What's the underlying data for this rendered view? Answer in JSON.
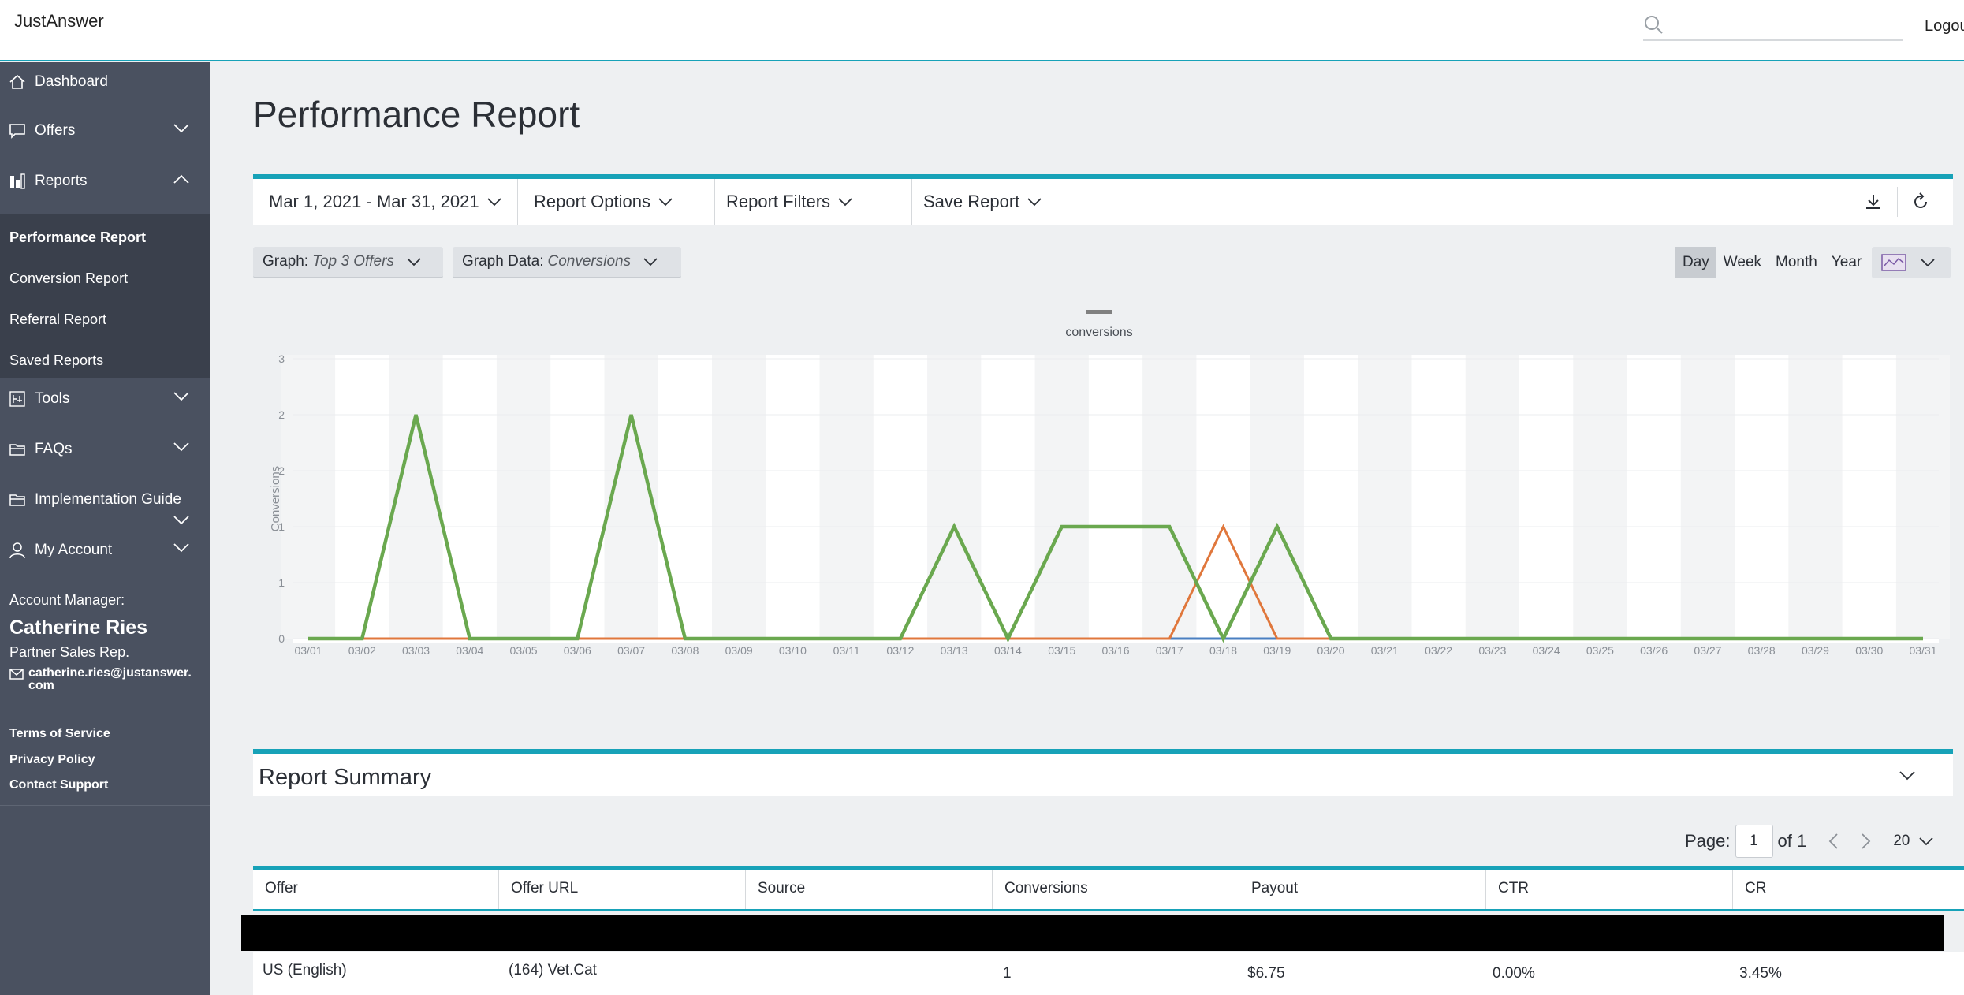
{
  "header": {
    "logo": "JustAnswer",
    "search_placeholder": "",
    "logout": "Logout"
  },
  "sidebar": {
    "items": [
      {
        "label": "Dashboard",
        "icon": "home-icon"
      },
      {
        "label": "Offers",
        "icon": "chat-icon"
      },
      {
        "label": "Reports",
        "icon": "bar-chart-icon"
      },
      {
        "label": "Tools",
        "icon": "tools-icon"
      },
      {
        "label": "FAQs",
        "icon": "folder-icon"
      },
      {
        "label": "Implementation Guide",
        "icon": "folder-icon"
      },
      {
        "label": "My Account",
        "icon": "user-icon"
      }
    ],
    "sub_items": [
      "Performance Report",
      "Conversion Report",
      "Referral Report",
      "Saved Reports"
    ],
    "account": {
      "label": "Account Manager:",
      "name": "Catherine Ries",
      "role": "Partner Sales Rep.",
      "email_line1": "catherine.ries@justanswer.",
      "email_line2": "com"
    },
    "footer_links": [
      "Terms of Service",
      "Privacy Policy",
      "Contact Support"
    ]
  },
  "main": {
    "title": "Performance Report",
    "filters": {
      "date_range": "Mar 1, 2021 - Mar 31, 2021",
      "report_options": "Report Options",
      "report_filters": "Report Filters",
      "save_report": "Save Report"
    },
    "graph": {
      "label": "Graph:",
      "value": "Top 3 Offers"
    },
    "graph_data": {
      "label": "Graph Data:",
      "value": "Conversions"
    },
    "periods": [
      "Day",
      "Week",
      "Month",
      "Year"
    ],
    "active_period": "Day",
    "summary_title": "Report Summary",
    "pager": {
      "label": "Page:",
      "page": "1",
      "of": "of 1",
      "per_page": "20"
    },
    "table": {
      "columns": [
        "Offer",
        "Offer URL",
        "Source",
        "Conversions",
        "Payout",
        "CTR",
        "CR"
      ],
      "rows": [
        {
          "offer": "US (English)",
          "url": "(164) Vet.Cat",
          "source": "",
          "conversions": "1",
          "payout": "$6.75",
          "ctr": "0.00%",
          "cr": "3.45%"
        }
      ]
    }
  },
  "chart_data": {
    "type": "line",
    "legend": [
      "conversions"
    ],
    "ylabel": "Conversions",
    "ytick_labels": [
      "0",
      "1",
      "1",
      "2",
      "2",
      "3"
    ],
    "ylim": [
      0,
      2.5
    ],
    "categories": [
      "03/01",
      "03/02",
      "03/03",
      "03/04",
      "03/05",
      "03/06",
      "03/07",
      "03/08",
      "03/09",
      "03/10",
      "03/11",
      "03/12",
      "03/13",
      "03/14",
      "03/15",
      "03/16",
      "03/17",
      "03/18",
      "03/19",
      "03/20",
      "03/21",
      "03/22",
      "03/23",
      "03/24",
      "03/25",
      "03/26",
      "03/27",
      "03/28",
      "03/29",
      "03/30",
      "03/31"
    ],
    "series": [
      {
        "color": "#4a7fc1",
        "values": [
          0,
          0,
          0,
          0,
          0,
          0,
          0,
          0,
          0,
          0,
          0,
          0,
          0,
          0,
          0,
          0,
          0,
          0,
          0,
          0,
          0,
          0,
          0,
          0,
          0,
          0,
          0,
          0,
          0,
          0,
          0
        ]
      },
      {
        "color": "#e0773c",
        "values": [
          0,
          0,
          0,
          0,
          0,
          0,
          0,
          0,
          0,
          0,
          0,
          0,
          0,
          0,
          0,
          0,
          0,
          1,
          0,
          0,
          0,
          0,
          0,
          0,
          0,
          0,
          0,
          0,
          0,
          0,
          0
        ]
      },
      {
        "color": "#6aa84f",
        "values": [
          0,
          0,
          2,
          0,
          0,
          0,
          2,
          0,
          0,
          0,
          0,
          0,
          1,
          0,
          1,
          1,
          1,
          0,
          1,
          0,
          0,
          0,
          0,
          0,
          0,
          0,
          0,
          0,
          0,
          0,
          0
        ]
      }
    ]
  }
}
